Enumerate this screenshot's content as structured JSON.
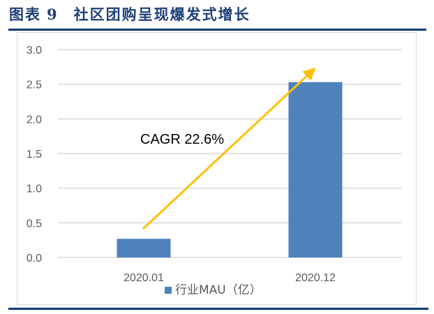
{
  "header": {
    "figure_label": "图表",
    "figure_number": "9",
    "title": "社区团购呈现爆发式增长"
  },
  "colors": {
    "title": "#1f3f78",
    "rule": "#073a7a",
    "bar": "#4f81bd",
    "arrow": "#ffc000",
    "gridline": "#d9d9d9",
    "axis_text": "#595959"
  },
  "chart_data": {
    "type": "bar",
    "title": "社区团购呈现爆发式增长",
    "categories": [
      "2020.01",
      "2020.12"
    ],
    "series": [
      {
        "name": "行业MAU（亿）",
        "values": [
          0.27,
          2.53
        ]
      }
    ],
    "xlabel": "",
    "ylabel": "",
    "ylim": [
      0,
      3.0
    ],
    "yticks": [
      "0.0",
      "0.5",
      "1.0",
      "1.5",
      "2.0",
      "2.5",
      "3.0"
    ],
    "grid": true,
    "legend_position": "bottom",
    "annotations": [
      {
        "text": "CAGR 22.6%",
        "type": "arrow",
        "from_category": "2020.01",
        "to_category": "2020.12"
      }
    ]
  }
}
